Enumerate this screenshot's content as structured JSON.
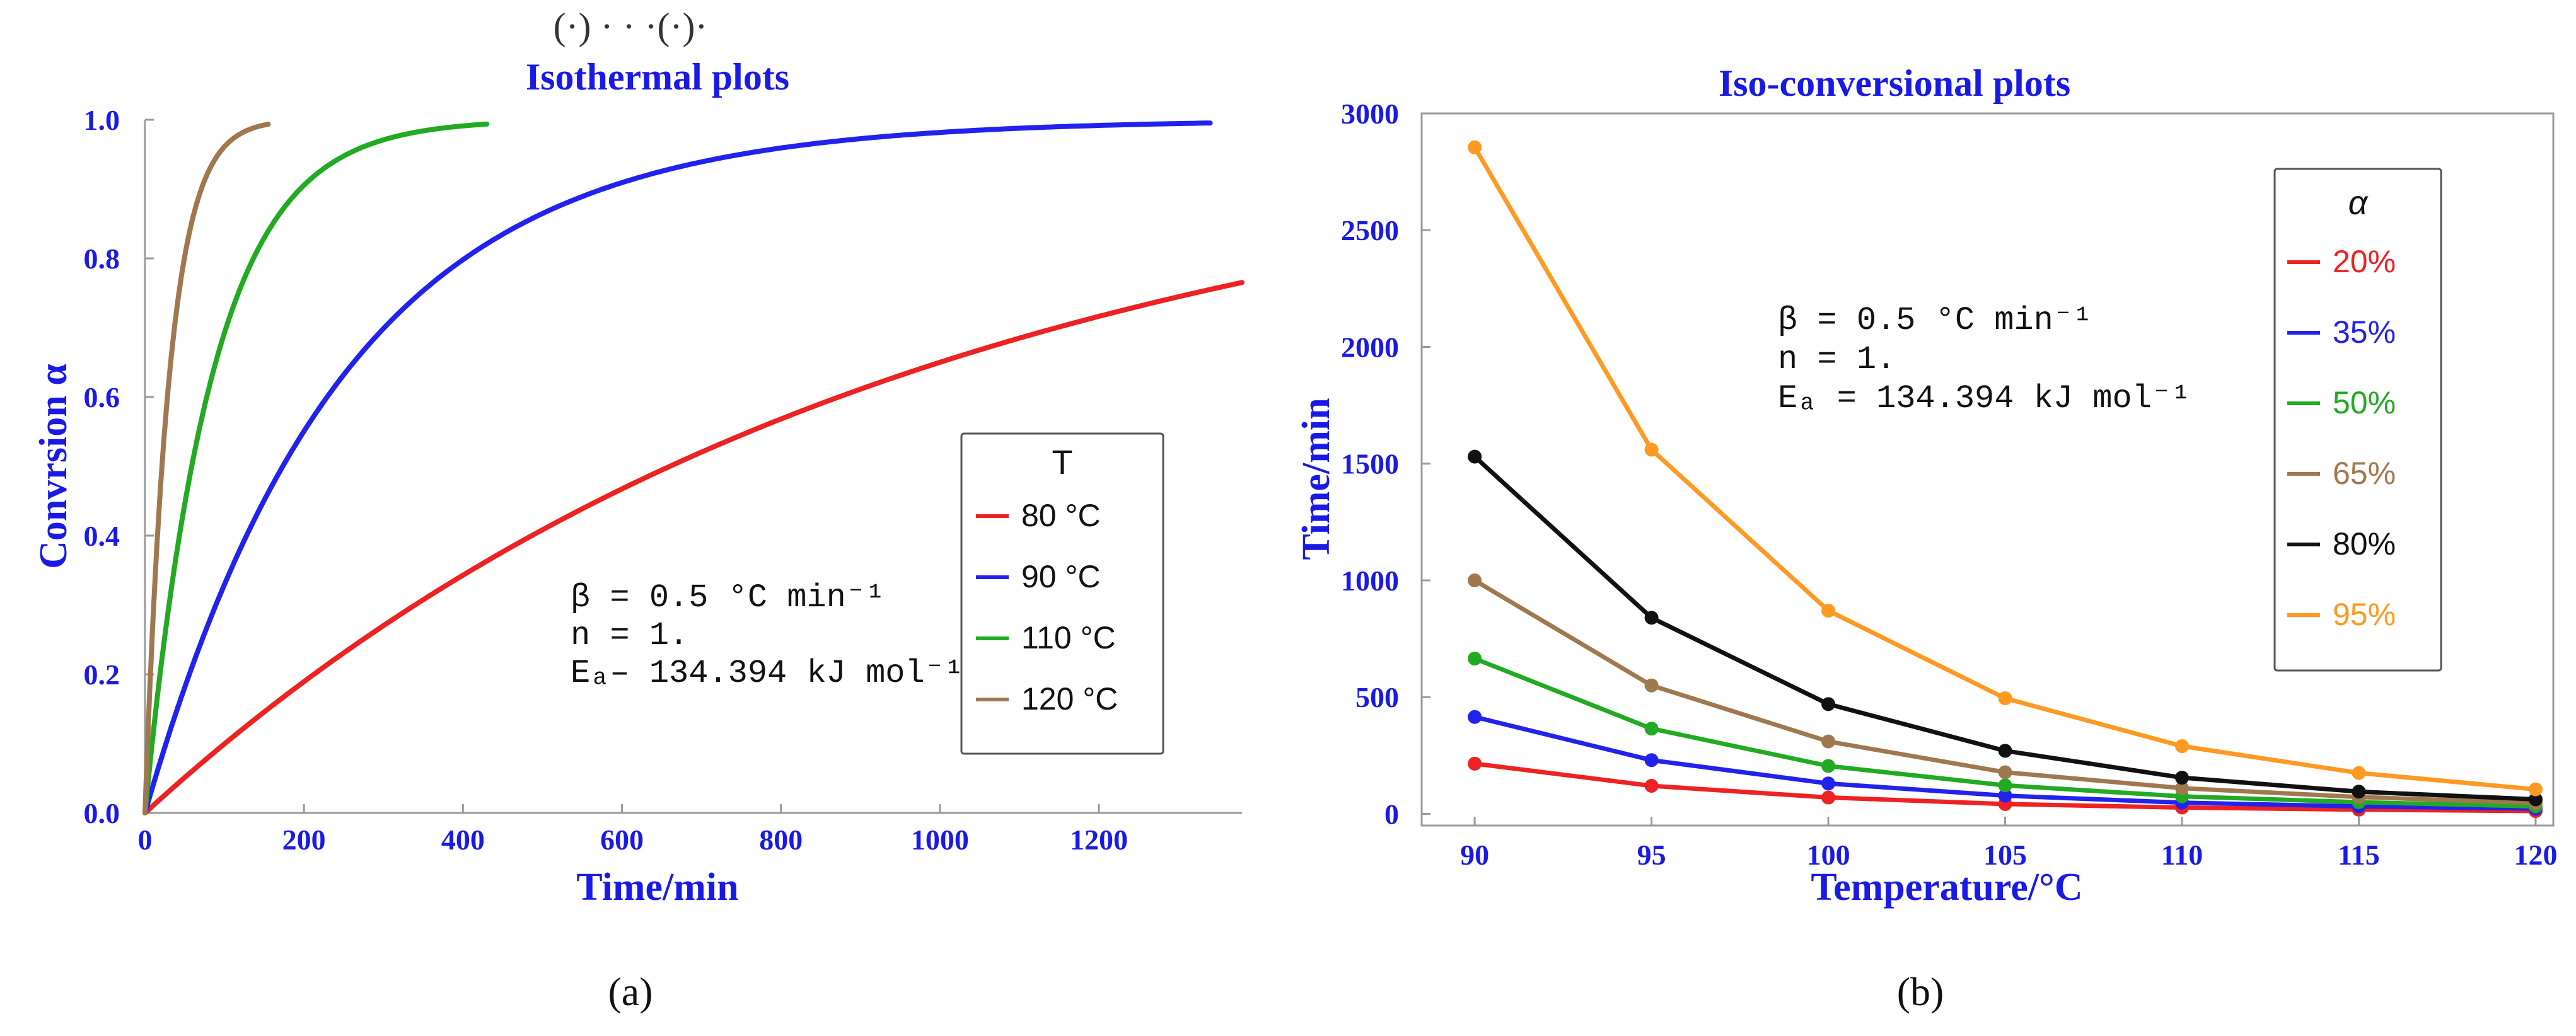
{
  "colors": {
    "axis_label": "#1a1ae6",
    "tick_label": "#1a1ae6",
    "frame": "#9a9a9a",
    "red": "#ee2222",
    "blue": "#2222ee",
    "green": "#22aa22",
    "brown": "#a07850",
    "black": "#111111",
    "orange": "#ff9922"
  },
  "panel_a": {
    "caption": "(a)",
    "title": "Isothermal plots",
    "top_fragment": "(·) · · ·(·)·",
    "legend_title": "T",
    "annotation": {
      "beta": "β = 0.5 °C min⁻¹",
      "n": "n = 1.",
      "ea": "Eₐ– 134.394 kJ mol⁻¹"
    }
  },
  "panel_b": {
    "caption": "(b)",
    "title": "Iso-conversional plots",
    "legend_title": "α",
    "annotation": {
      "beta": "β = 0.5 °C min⁻¹",
      "n": "n = 1.",
      "ea": "Eₐ = 134.394 kJ mol⁻¹"
    }
  },
  "chart_data": [
    {
      "type": "line",
      "title": "Isothermal plots",
      "xlabel": "Time/min",
      "ylabel": "Convrsion α",
      "xlim": [
        0,
        1380
      ],
      "ylim": [
        0,
        1.0
      ],
      "xticks": [
        "0",
        "200",
        "400",
        "600",
        "800",
        "1000",
        "1200"
      ],
      "yticks": [
        "0.0",
        "0.2",
        "0.4",
        "0.6",
        "0.8",
        "1.0"
      ],
      "legend_title": "T",
      "series": [
        {
          "name": "80 °C",
          "color": "#ee2222",
          "k": 0.00105,
          "t_end": 1380
        },
        {
          "name": "90 °C",
          "color": "#2222ee",
          "k": 0.004,
          "t_end": 1340
        },
        {
          "name": "110 °C",
          "color": "#22aa22",
          "k": 0.0118,
          "t_end": 430
        },
        {
          "name": "120 °C",
          "color": "#a07850",
          "k": 0.0325,
          "t_end": 155
        }
      ]
    },
    {
      "type": "line",
      "title": "Iso-conversional plots",
      "xlabel": "Temperature/°C",
      "ylabel": "Time/min",
      "xlim": [
        88.5,
        120.5
      ],
      "ylim": [
        -50,
        3000
      ],
      "x": [
        90,
        95,
        100,
        105,
        110,
        115,
        120
      ],
      "xticks": [
        "90",
        "95",
        "100",
        "105",
        "110",
        "115",
        "120"
      ],
      "yticks": [
        "0",
        "500",
        "1000",
        "1500",
        "2000",
        "2500",
        "3000"
      ],
      "legend_title": "α",
      "series": [
        {
          "name": "20%",
          "color": "#ee2222",
          "values": [
            215,
            120,
            70,
            42,
            27,
            18,
            12
          ]
        },
        {
          "name": "35%",
          "color": "#2222ee",
          "values": [
            415,
            230,
            130,
            78,
            48,
            32,
            22
          ]
        },
        {
          "name": "50%",
          "color": "#22aa22",
          "values": [
            665,
            365,
            205,
            122,
            75,
            50,
            32
          ]
        },
        {
          "name": "65%",
          "color": "#a07850",
          "values": [
            1000,
            550,
            310,
            178,
            110,
            72,
            47
          ]
        },
        {
          "name": "80%",
          "color": "#111111",
          "values": [
            1530,
            840,
            470,
            270,
            155,
            95,
            62
          ]
        },
        {
          "name": "95%",
          "color": "#ff9922",
          "values": [
            2855,
            1560,
            870,
            495,
            290,
            175,
            105
          ]
        }
      ]
    }
  ]
}
